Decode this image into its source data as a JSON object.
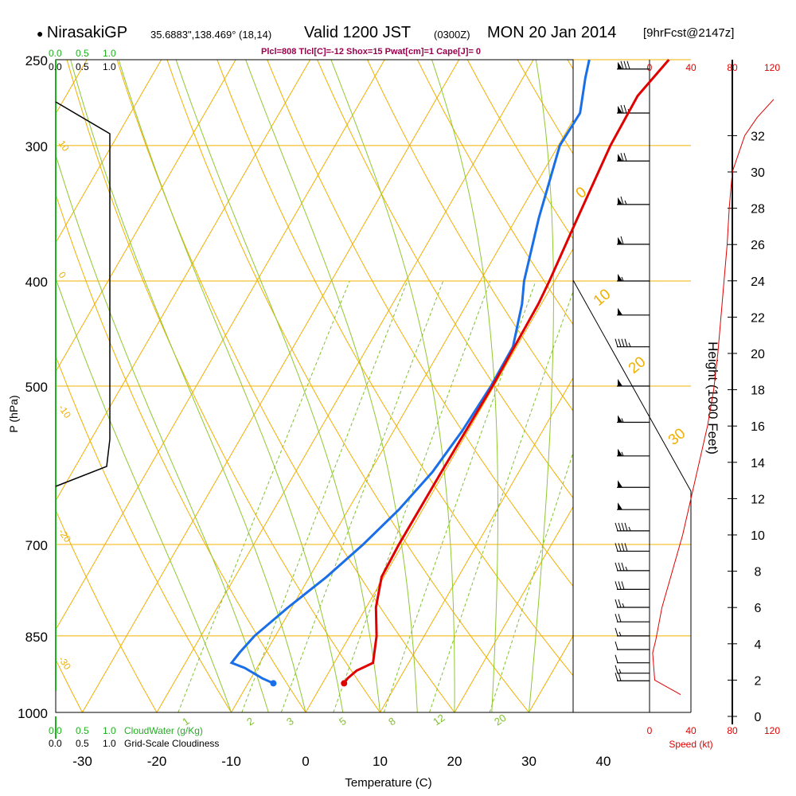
{
  "header": {
    "station": "NirasakiGP",
    "coords": "35.6883\",138.469° (18,14)",
    "valid": "Valid 1200 JST",
    "utc": "(0300Z)",
    "date": "MON 20 Jan 2014",
    "forecast": "[9hrFcst@2147z]"
  },
  "indices": "Plcl=808 Tlcl[C]=-12 Shox=15 Pwat[cm]=1 Cape[J]= 0",
  "cloudwater": {
    "top_green": [
      "0.0",
      "0.5",
      "1.0"
    ],
    "top_black": [
      "0.0",
      "0.5",
      "1.0"
    ],
    "bottom_green": [
      "0.0",
      "0.5",
      "1.0"
    ],
    "bottom_green_label": "CloudWater (g/Kg)",
    "bottom_black": [
      "0.0",
      "0.5",
      "1.0"
    ],
    "bottom_black_label": "Grid-Scale Cloudiness"
  },
  "colors": {
    "temperature": "#e00000",
    "dewpoint": "#1a6ee8",
    "isotherm": "#f0b000",
    "dry_adiabat": "#f0b000",
    "moist_adiabat": "#90c830",
    "mixing_ratio": "#80c030",
    "cloudwater": "#20b020",
    "speed": "#e00000"
  },
  "chart_data": {
    "type": "skew-t",
    "xlabel": "Temperature (C)",
    "ylabel": "P (hPa)",
    "right_ylabel": "Height (1000 Feet)",
    "speed_label": "Speed (kt)",
    "x_ticks": [
      -30,
      -20,
      -10,
      0,
      10,
      20,
      30,
      40
    ],
    "pressure_ticks": [
      250,
      300,
      400,
      500,
      700,
      850,
      1000
    ],
    "pressure_range": [
      1000,
      250
    ],
    "temperature_range": [
      -34,
      36
    ],
    "height_ticks": [
      0,
      2,
      4,
      6,
      8,
      10,
      12,
      14,
      16,
      18,
      20,
      22,
      24,
      26,
      28,
      30,
      32
    ],
    "speed_ticks": [
      0,
      40,
      80,
      120
    ],
    "theta_labels": [
      "10",
      "0",
      "-10",
      "-20",
      "-30"
    ],
    "theta_e_labels": [
      "0",
      "10",
      "20",
      "30"
    ],
    "mixing_ratio_labels": [
      "1",
      "2",
      "3",
      "5",
      "8",
      "12",
      "20"
    ],
    "temperature_profile": [
      {
        "p": 940,
        "t": 2.9
      },
      {
        "p": 930,
        "t": 3.0
      },
      {
        "p": 915,
        "t": 3.6
      },
      {
        "p": 900,
        "t": 5.2
      },
      {
        "p": 850,
        "t": 3.6
      },
      {
        "p": 800,
        "t": 1.3
      },
      {
        "p": 750,
        "t": -0.3
      },
      {
        "p": 700,
        "t": -0.5
      },
      {
        "p": 600,
        "t": -0.4
      },
      {
        "p": 500,
        "t": -0.2
      },
      {
        "p": 420,
        "t": -0.4
      },
      {
        "p": 400,
        "t": -0.7
      },
      {
        "p": 350,
        "t": -1.8
      },
      {
        "p": 300,
        "t": -3.0
      },
      {
        "p": 270,
        "t": -3.2
      },
      {
        "p": 250,
        "t": -1.8
      }
    ],
    "dewpoint_profile": [
      {
        "p": 940,
        "t": -6.6
      },
      {
        "p": 930,
        "t": -8.5
      },
      {
        "p": 910,
        "t": -11.6
      },
      {
        "p": 900,
        "t": -13.8
      },
      {
        "p": 880,
        "t": -13.5
      },
      {
        "p": 850,
        "t": -12.8
      },
      {
        "p": 800,
        "t": -10.5
      },
      {
        "p": 750,
        "t": -7.7
      },
      {
        "p": 700,
        "t": -5.3
      },
      {
        "p": 650,
        "t": -3.2
      },
      {
        "p": 600,
        "t": -1.6
      },
      {
        "p": 550,
        "t": -0.8
      },
      {
        "p": 500,
        "t": -0.4
      },
      {
        "p": 460,
        "t": -0.5
      },
      {
        "p": 420,
        "t": -2.6
      },
      {
        "p": 400,
        "t": -4.1
      },
      {
        "p": 350,
        "t": -7.0
      },
      {
        "p": 300,
        "t": -9.8
      },
      {
        "p": 280,
        "t": -9.6
      },
      {
        "p": 260,
        "t": -11.6
      },
      {
        "p": 250,
        "t": -12.5
      }
    ],
    "surface_temperature": {
      "p": 940,
      "t": 2.9
    },
    "surface_dewpoint": {
      "p": 940,
      "t": -6.6
    },
    "wind_speed_profile": [
      {
        "h": 1.2,
        "s": 30
      },
      {
        "h": 2.0,
        "s": 5
      },
      {
        "h": 3.5,
        "s": 3
      },
      {
        "h": 4.2,
        "s": 6
      },
      {
        "h": 6.0,
        "s": 12
      },
      {
        "h": 8.0,
        "s": 22
      },
      {
        "h": 10.0,
        "s": 32
      },
      {
        "h": 12.0,
        "s": 40
      },
      {
        "h": 14.0,
        "s": 48
      },
      {
        "h": 16.0,
        "s": 56
      },
      {
        "h": 18.0,
        "s": 62
      },
      {
        "h": 20.0,
        "s": 66
      },
      {
        "h": 22.0,
        "s": 69
      },
      {
        "h": 24.0,
        "s": 72
      },
      {
        "h": 26.0,
        "s": 75
      },
      {
        "h": 28.0,
        "s": 77
      },
      {
        "h": 30.0,
        "s": 80
      },
      {
        "h": 32.0,
        "s": 92
      },
      {
        "h": 33.0,
        "s": 104
      },
      {
        "h": 34.0,
        "s": 120
      }
    ],
    "wind_barbs": [
      {
        "p": 255,
        "kt": 80
      },
      {
        "p": 280,
        "kt": 75
      },
      {
        "p": 310,
        "kt": 70
      },
      {
        "p": 340,
        "kt": 65
      },
      {
        "p": 370,
        "kt": 60
      },
      {
        "p": 400,
        "kt": 55
      },
      {
        "p": 430,
        "kt": 50
      },
      {
        "p": 460,
        "kt": 45
      },
      {
        "p": 500,
        "kt": 50
      },
      {
        "p": 540,
        "kt": 55
      },
      {
        "p": 580,
        "kt": 55
      },
      {
        "p": 620,
        "kt": 50
      },
      {
        "p": 650,
        "kt": 50
      },
      {
        "p": 680,
        "kt": 45
      },
      {
        "p": 710,
        "kt": 40
      },
      {
        "p": 740,
        "kt": 35
      },
      {
        "p": 770,
        "kt": 30
      },
      {
        "p": 800,
        "kt": 25
      },
      {
        "p": 825,
        "kt": 20
      },
      {
        "p": 850,
        "kt": 15
      },
      {
        "p": 875,
        "kt": 10
      },
      {
        "p": 900,
        "kt": 10
      },
      {
        "p": 920,
        "kt": 15
      },
      {
        "p": 935,
        "kt": 20
      }
    ]
  }
}
